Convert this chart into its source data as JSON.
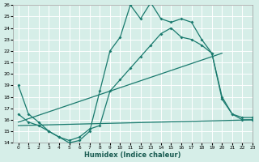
{
  "title": "",
  "xlabel": "Humidex (Indice chaleur)",
  "background_color": "#d6eee8",
  "grid_color": "#b8d8d0",
  "line_color": "#1a7a6e",
  "ylim": [
    14,
    26
  ],
  "xlim": [
    -0.5,
    23
  ],
  "yticks": [
    14,
    15,
    16,
    17,
    18,
    19,
    20,
    21,
    22,
    23,
    24,
    25,
    26
  ],
  "xticks": [
    0,
    1,
    2,
    3,
    4,
    5,
    6,
    7,
    8,
    9,
    10,
    11,
    12,
    13,
    14,
    15,
    16,
    17,
    18,
    19,
    20,
    21,
    22,
    23
  ],
  "curve1_x": [
    0,
    1,
    2,
    3,
    4,
    5,
    6,
    7,
    8,
    9,
    10,
    11,
    12,
    13,
    14,
    15,
    16,
    17,
    18,
    19,
    20,
    21,
    22,
    23
  ],
  "curve1_y": [
    19.0,
    16.5,
    15.8,
    15.0,
    14.5,
    14.0,
    14.2,
    15.0,
    18.5,
    22.0,
    23.2,
    26.0,
    24.8,
    26.2,
    24.8,
    24.5,
    24.8,
    24.5,
    23.0,
    21.8,
    18.0,
    16.5,
    16.2,
    16.2
  ],
  "curve2_x": [
    0,
    1,
    2,
    3,
    4,
    5,
    6,
    7,
    8,
    9,
    10,
    11,
    12,
    13,
    14,
    15,
    16,
    17,
    18,
    19,
    20,
    21,
    22,
    23
  ],
  "curve2_y": [
    16.5,
    15.8,
    15.5,
    15.0,
    14.5,
    14.2,
    14.5,
    15.2,
    15.5,
    18.5,
    19.5,
    20.5,
    21.5,
    22.5,
    23.5,
    24.0,
    23.2,
    23.0,
    22.5,
    21.8,
    17.8,
    16.5,
    16.0,
    16.0
  ],
  "trend1_x": [
    0,
    23
  ],
  "trend1_y": [
    15.5,
    16.0
  ],
  "trend2_x": [
    0,
    20
  ],
  "trend2_y": [
    15.8,
    21.8
  ]
}
